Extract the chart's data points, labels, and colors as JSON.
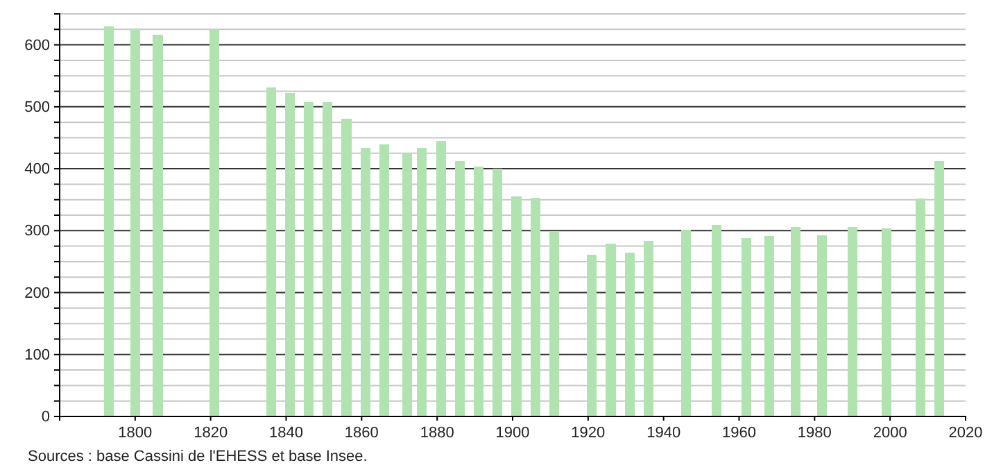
{
  "chart_data": {
    "type": "bar",
    "x": [
      1793,
      1800,
      1806,
      1821,
      1836,
      1841,
      1846,
      1851,
      1856,
      1861,
      1866,
      1872,
      1876,
      1881,
      1886,
      1891,
      1896,
      1901,
      1906,
      1911,
      1921,
      1926,
      1931,
      1936,
      1946,
      1954,
      1962,
      1968,
      1975,
      1982,
      1990,
      1999,
      2008,
      2013
    ],
    "values": [
      630,
      627,
      616,
      625,
      531,
      522,
      508,
      508,
      481,
      434,
      439,
      425,
      434,
      445,
      412,
      403,
      400,
      355,
      353,
      299,
      261,
      279,
      265,
      283,
      301,
      309,
      288,
      291,
      306,
      292,
      306,
      304,
      352,
      412
    ],
    "color": "#b0e3b0",
    "xlim": [
      1780,
      2020
    ],
    "xticks": [
      1800,
      1820,
      1840,
      1860,
      1880,
      1900,
      1920,
      1940,
      1960,
      1980,
      2000,
      2020
    ],
    "ylim": [
      0,
      650
    ],
    "yticks": [
      0,
      {
        "value": 25,
        "label": null
      },
      {
        "value": 50,
        "label": null
      },
      {
        "value": 75,
        "label": null
      },
      100,
      {
        "value": 125,
        "label": null
      },
      {
        "value": 150,
        "label": null
      },
      {
        "value": 175,
        "label": null
      },
      200,
      {
        "value": 225,
        "label": null
      },
      {
        "value": 250,
        "label": null
      },
      {
        "value": 275,
        "label": null
      },
      300,
      {
        "value": 325,
        "label": null
      },
      {
        "value": 350,
        "label": null
      },
      {
        "value": 375,
        "label": null
      },
      400,
      {
        "value": 425,
        "label": null
      },
      {
        "value": 450,
        "label": null
      },
      {
        "value": 475,
        "label": null
      },
      500,
      {
        "value": 525,
        "label": null
      },
      {
        "value": 550,
        "label": null
      },
      {
        "value": 575,
        "label": null
      },
      600,
      {
        "value": 625,
        "label": null
      },
      {
        "value": 650,
        "label": null
      }
    ],
    "grid": "y",
    "annotations": [
      "Sources : base Cassini de l'EHESS et base Insee."
    ]
  }
}
